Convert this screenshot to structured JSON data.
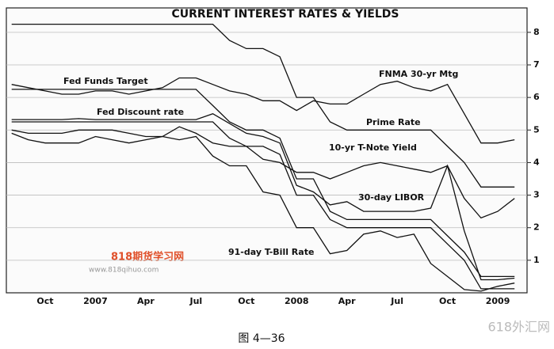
{
  "chart_data": {
    "type": "line",
    "title": "CURRENT INTEREST RATES & YIELDS",
    "caption": "图 4—36",
    "watermarks": [
      "818期货学习网",
      "www.818qihuo.com",
      "618外汇网"
    ],
    "categories": [
      null,
      null,
      "Oct",
      null,
      null,
      "2007",
      null,
      null,
      "Apr",
      null,
      null,
      "Jul",
      null,
      null,
      "Oct",
      null,
      null,
      "2008",
      null,
      null,
      "Apr",
      null,
      null,
      "Jul",
      null,
      null,
      "Oct",
      null,
      null,
      "2009",
      null
    ],
    "ylim": [
      0,
      8.75
    ],
    "yticks": [
      1,
      2,
      3,
      4,
      5,
      6,
      7,
      8
    ],
    "grid": true,
    "series": [
      {
        "name": "Prime Rate",
        "color": "#111",
        "values": [
          8.25,
          8.25,
          8.25,
          8.25,
          8.25,
          8.25,
          8.25,
          8.25,
          8.25,
          8.25,
          8.25,
          8.25,
          8.25,
          7.75,
          7.5,
          7.5,
          7.25,
          6.0,
          6.0,
          5.25,
          5.0,
          5.0,
          5.0,
          5.0,
          5.0,
          5.0,
          4.5,
          4.0,
          3.25,
          3.25,
          3.25
        ]
      },
      {
        "name": "FNMA 30-yr Mtg",
        "color": "#111",
        "values": [
          6.4,
          6.3,
          6.2,
          6.1,
          6.1,
          6.2,
          6.2,
          6.1,
          6.2,
          6.3,
          6.6,
          6.6,
          6.4,
          6.2,
          6.1,
          5.9,
          5.9,
          5.6,
          5.9,
          5.8,
          5.8,
          6.1,
          6.4,
          6.5,
          6.3,
          6.2,
          6.4,
          5.5,
          4.6,
          4.6,
          4.7
        ]
      },
      {
        "name": "Fed Funds Target",
        "color": "#111",
        "values": [
          5.25,
          5.25,
          5.25,
          5.25,
          5.25,
          5.25,
          5.25,
          5.25,
          5.25,
          5.25,
          5.25,
          5.25,
          5.25,
          4.75,
          4.5,
          4.5,
          4.25,
          3.0,
          3.0,
          2.25,
          2.0,
          2.0,
          2.0,
          2.0,
          2.0,
          2.0,
          1.5,
          1.0,
          0.125,
          0.125,
          0.125
        ]
      },
      {
        "name": "Fed Discount rate",
        "color": "#111",
        "values": [
          6.25,
          6.25,
          6.25,
          6.25,
          6.25,
          6.25,
          6.25,
          6.25,
          6.25,
          6.25,
          6.25,
          6.25,
          5.75,
          5.25,
          5.0,
          5.0,
          4.75,
          3.5,
          3.5,
          2.5,
          2.25,
          2.25,
          2.25,
          2.25,
          2.25,
          2.25,
          1.75,
          1.25,
          0.5,
          0.5,
          0.5
        ]
      },
      {
        "name": "10-yr T-Note Yield",
        "color": "#111",
        "values": [
          4.9,
          4.7,
          4.6,
          4.6,
          4.6,
          4.8,
          4.7,
          4.6,
          4.7,
          4.8,
          5.1,
          4.9,
          4.6,
          4.5,
          4.5,
          4.1,
          4.0,
          3.7,
          3.7,
          3.5,
          3.7,
          3.9,
          4.0,
          3.9,
          3.8,
          3.7,
          3.9,
          2.9,
          2.3,
          2.5,
          2.9
        ]
      },
      {
        "name": "30-day LIBOR",
        "color": "#111",
        "values": [
          5.32,
          5.32,
          5.32,
          5.32,
          5.35,
          5.32,
          5.32,
          5.32,
          5.32,
          5.32,
          5.32,
          5.32,
          5.5,
          5.2,
          4.9,
          4.8,
          4.6,
          3.3,
          3.1,
          2.7,
          2.8,
          2.5,
          2.5,
          2.5,
          2.5,
          2.6,
          3.9,
          1.9,
          0.4,
          0.4,
          0.45
        ]
      },
      {
        "name": "91-day T-Bill Rate",
        "color": "#111",
        "values": [
          5.0,
          4.9,
          4.9,
          4.9,
          5.0,
          5.0,
          5.0,
          4.9,
          4.8,
          4.8,
          4.7,
          4.8,
          4.2,
          3.9,
          3.9,
          3.1,
          3.0,
          2.0,
          2.0,
          1.2,
          1.3,
          1.8,
          1.9,
          1.7,
          1.8,
          0.9,
          0.5,
          0.1,
          0.05,
          0.2,
          0.3
        ]
      }
    ]
  }
}
